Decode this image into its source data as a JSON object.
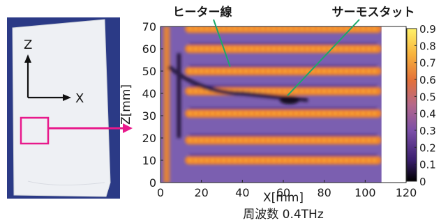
{
  "photo": {
    "z_label": "Z",
    "x_label": "X",
    "highlight_color": "#e8198b"
  },
  "chart_data": {
    "type": "heatmap",
    "title": "周波数 0.4THz",
    "xlabel": "X[mm]",
    "ylabel": "Z[mm]",
    "xlim": [
      0,
      120
    ],
    "ylim": [
      0,
      70
    ],
    "x_ticks": [
      0,
      20,
      40,
      60,
      80,
      100,
      120
    ],
    "y_ticks": [
      0,
      10,
      20,
      30,
      40,
      50,
      60,
      70
    ],
    "data_extent_x": [
      0,
      108
    ],
    "data_extent_z": [
      0,
      70
    ],
    "colorbar": {
      "range": [
        0,
        0.9
      ],
      "ticks": [
        0,
        0.1,
        0.2,
        0.3,
        0.4,
        0.5,
        0.6,
        0.7,
        0.8,
        0.9
      ],
      "colormap": [
        "#000000",
        "#3a1e6e",
        "#7b4fa8",
        "#b5688a",
        "#e3703a",
        "#f7b23c",
        "#fff26a"
      ]
    },
    "heater_lines_z": [
      10,
      19,
      31,
      41,
      50,
      60,
      69
    ],
    "annotations": [
      {
        "text": "ヒーター線",
        "target": [
          34,
          52
        ]
      },
      {
        "text": "サーモスタット",
        "target": [
          62,
          39
        ]
      }
    ],
    "grid": false
  },
  "colors": {
    "annotation_line": "#1aa86a",
    "background_mid": "#7b5fb0",
    "heater": "#f28a2c"
  }
}
